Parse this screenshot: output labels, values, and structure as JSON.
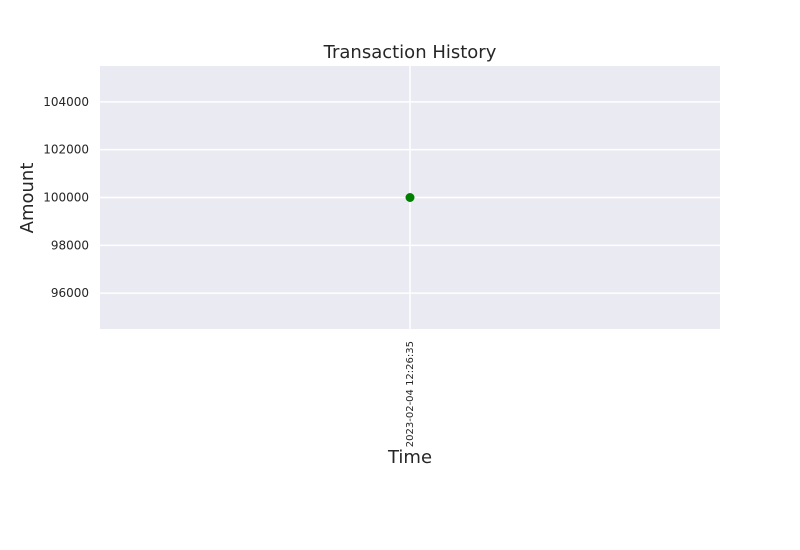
{
  "chart_data": {
    "type": "scatter",
    "title": "Transaction History",
    "xlabel": "Time",
    "ylabel": "Amount",
    "categories": [
      "2023-02-04 12:26:35"
    ],
    "values": [
      100000
    ],
    "ylim": [
      94500,
      105500
    ],
    "yticks": [
      96000,
      98000,
      100000,
      102000,
      104000
    ],
    "grid": true,
    "colors": {
      "plot_background": "#EAEAF2",
      "grid": "#FFFFFF",
      "marker": "#008000"
    }
  }
}
